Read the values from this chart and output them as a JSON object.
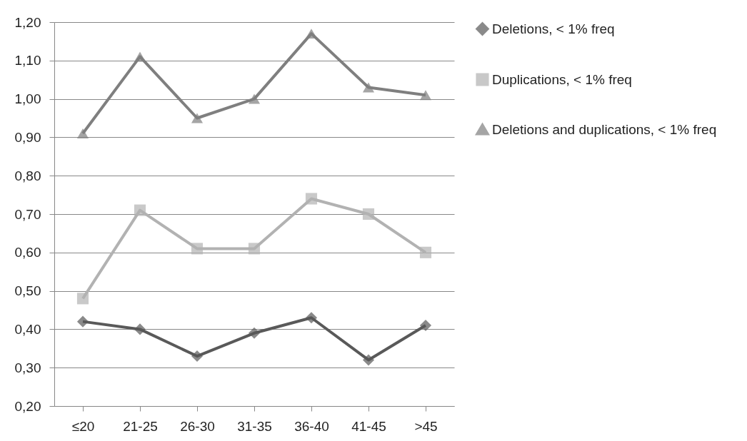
{
  "chart_data": {
    "type": "line",
    "categories": [
      "≤20",
      "21-25",
      "26-30",
      "31-35",
      "36-40",
      "41-45",
      ">45"
    ],
    "series": [
      {
        "name": "Deletions, < 1% freq",
        "color": "#595959",
        "marker": "diamond",
        "values": [
          0.42,
          0.4,
          0.33,
          0.39,
          0.43,
          0.32,
          0.41
        ]
      },
      {
        "name": "Duplications, < 1% freq",
        "color": "#b2b2b2",
        "marker": "square",
        "values": [
          0.48,
          0.71,
          0.61,
          0.61,
          0.74,
          0.7,
          0.6
        ]
      },
      {
        "name": "Deletions and duplications, < 1% freq",
        "color": "#7f7f7f",
        "marker": "triangle",
        "values": [
          0.91,
          1.11,
          0.95,
          1.0,
          1.17,
          1.03,
          1.01
        ]
      }
    ],
    "ylim": [
      0.2,
      1.2
    ],
    "yticks": [
      {
        "value": 0.2,
        "label": "0,20"
      },
      {
        "value": 0.3,
        "label": "0,30"
      },
      {
        "value": 0.4,
        "label": "0,40"
      },
      {
        "value": 0.5,
        "label": "0,50"
      },
      {
        "value": 0.6,
        "label": "0,60"
      },
      {
        "value": 0.7,
        "label": "0,70"
      },
      {
        "value": 0.8,
        "label": "0,80"
      },
      {
        "value": 0.9,
        "label": "0,90"
      },
      {
        "value": 1.0,
        "label": "1,00"
      },
      {
        "value": 1.1,
        "label": "1,10"
      },
      {
        "value": 1.2,
        "label": "1,20"
      }
    ],
    "grid": "y",
    "legend": "right",
    "line_style": "solid"
  }
}
